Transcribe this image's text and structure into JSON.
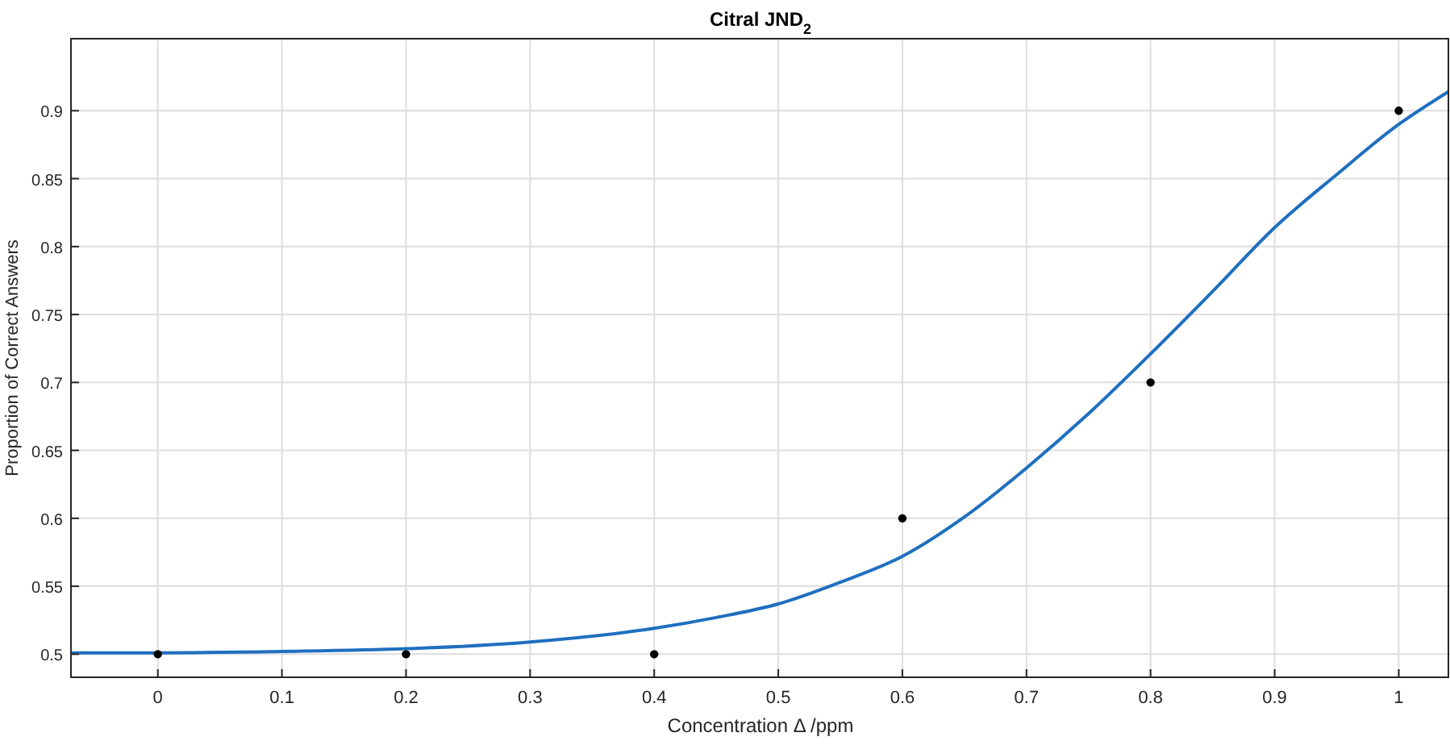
{
  "chart_data": {
    "type": "scatter",
    "title": "Citral JND$_{2}$",
    "xlabel": "Concentration Δ /ppm",
    "ylabel": "Proportion of Correct Answers",
    "xlim": [
      -0.07,
      1.04
    ],
    "ylim": [
      0.483,
      0.953
    ],
    "xticks": [
      0,
      0.1,
      0.2,
      0.3,
      0.4,
      0.5,
      0.6,
      0.7,
      0.8,
      0.9,
      1
    ],
    "yticks": [
      0.5,
      0.55,
      0.6,
      0.65,
      0.7,
      0.75,
      0.8,
      0.85,
      0.9
    ],
    "grid": true,
    "series": [
      {
        "color": "#000000",
        "marker": "circle",
        "x": [
          0,
          0.2,
          0.4,
          0.6,
          0.8,
          1
        ],
        "values": [
          0.5,
          0.5,
          0.5,
          0.6,
          0.7,
          0.9
        ]
      },
      {
        "type": "line",
        "color": "#1f6fbf",
        "line_style": "solid",
        "x": [
          -0.07,
          0,
          0.1,
          0.2,
          0.3,
          0.4,
          0.45,
          0.5,
          0.55,
          0.6,
          0.65,
          0.7,
          0.75,
          0.8,
          0.85,
          0.9,
          0.95,
          1,
          1.04
        ],
        "values": [
          0.501,
          0.501,
          0.502,
          0.504,
          0.509,
          0.519,
          0.527,
          0.537,
          0.553,
          0.572,
          0.601,
          0.637,
          0.677,
          0.721,
          0.767,
          0.814,
          0.853,
          0.89,
          0.914
        ]
      }
    ]
  }
}
